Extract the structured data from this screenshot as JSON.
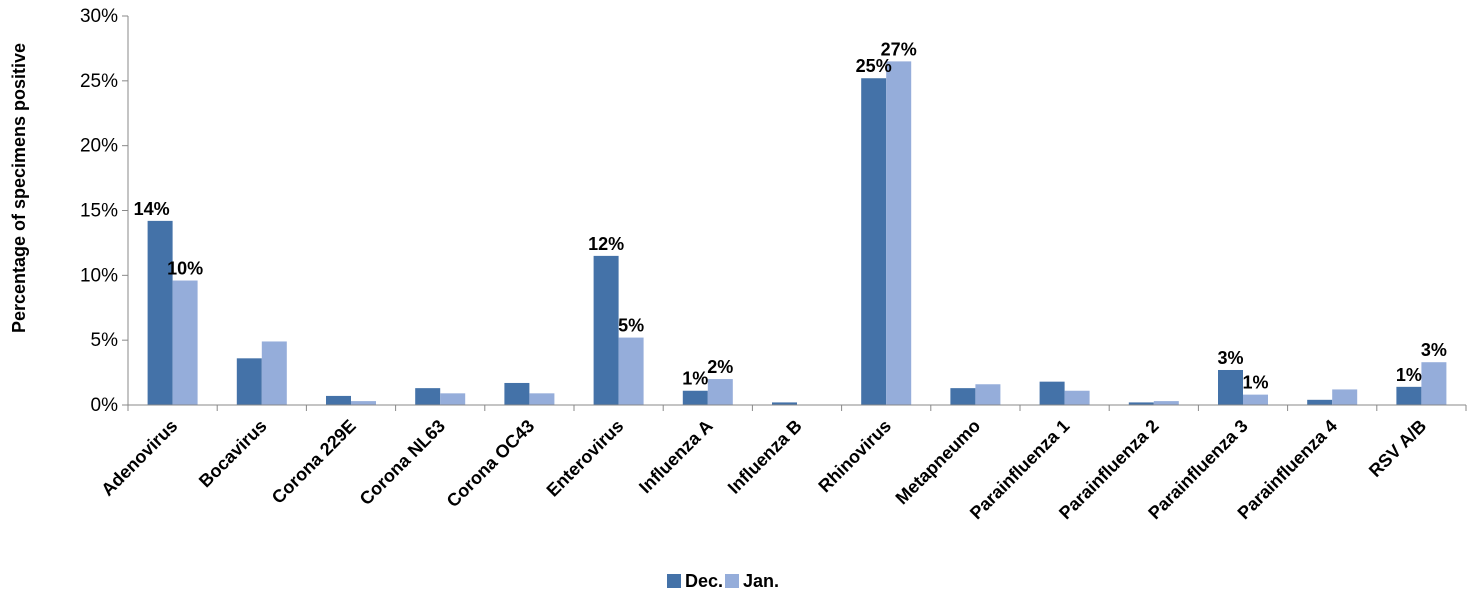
{
  "chart_data": {
    "type": "bar",
    "title": "",
    "xlabel": "",
    "ylabel": "Percentage of specimens positive",
    "ylim": [
      0,
      30
    ],
    "yticks": [
      "0%",
      "5%",
      "10%",
      "15%",
      "20%",
      "25%",
      "30%"
    ],
    "grid": false,
    "legend_position": "bottom",
    "categories": [
      "Adenovirus",
      "Bocavirus",
      "Corona 229E",
      "Corona NL63",
      "Corona OC43",
      "Enterovirus",
      "Influenza A",
      "Influenza B",
      "Rhinovirus",
      "Metapneumo",
      "Parainfluenza 1",
      "Parainfluenza 2",
      "Parainfluenza 3",
      "Parainfluenza 4",
      "RSV A/B"
    ],
    "series": [
      {
        "name": "Dec.",
        "color": "#4472a8",
        "values": [
          14.2,
          3.6,
          0.7,
          1.3,
          1.7,
          11.5,
          1.1,
          0.2,
          25.2,
          1.3,
          1.8,
          0.2,
          2.7,
          0.4,
          1.4
        ],
        "labels": [
          "14%",
          null,
          null,
          null,
          null,
          "12%",
          "1%",
          null,
          "25%",
          null,
          null,
          null,
          "3%",
          null,
          "1%"
        ]
      },
      {
        "name": "Jan.",
        "color": "#95adda",
        "values": [
          9.6,
          4.9,
          0.3,
          0.9,
          0.9,
          5.2,
          2.0,
          0.0,
          26.5,
          1.6,
          1.1,
          0.3,
          0.8,
          1.2,
          3.3
        ],
        "labels": [
          "10%",
          null,
          null,
          null,
          null,
          "5%",
          "2%",
          null,
          "27%",
          null,
          null,
          null,
          "1%",
          null,
          "3%"
        ]
      }
    ]
  }
}
